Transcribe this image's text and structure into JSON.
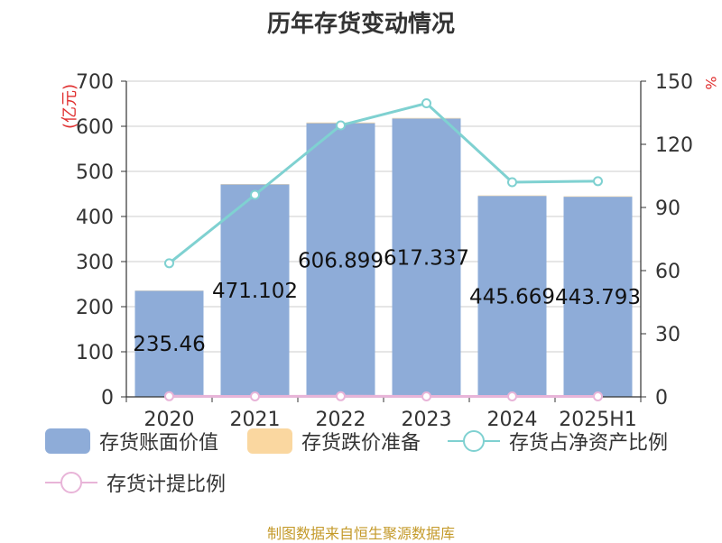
{
  "chart_data": {
    "type": "bar",
    "title": "历年存货变动情况",
    "categories": [
      "2020",
      "2021",
      "2022",
      "2023",
      "2024",
      "2025H1"
    ],
    "ylabel_left": "(亿元)",
    "ylabel_right": "%",
    "ylim_left": [
      0,
      700
    ],
    "yticks_left": [
      "0",
      "100",
      "200",
      "300",
      "400",
      "500",
      "600",
      "700"
    ],
    "ylim_right": [
      0,
      150
    ],
    "yticks_right": [
      "0",
      "30",
      "60",
      "90",
      "120",
      "150"
    ],
    "grid": true,
    "series": [
      {
        "name": "存货账面价值",
        "type": "bar",
        "axis": "left",
        "color": "#8eacd8",
        "values": [
          235.46,
          471.102,
          606.899,
          617.337,
          445.669,
          443.793
        ],
        "labels": [
          "235.46",
          "471.102",
          "606.899",
          "617.337",
          "445.669",
          "443.793"
        ]
      },
      {
        "name": "存货跌价准备",
        "type": "bar",
        "axis": "left",
        "color": "#fad7a0",
        "values": [
          0.6,
          0.8,
          1.5,
          1.2,
          1.0,
          1.0
        ]
      },
      {
        "name": "存货占净资产比例",
        "type": "line",
        "axis": "right",
        "color": "#7fd1d1",
        "values": [
          63.5,
          96,
          129,
          139.5,
          102,
          102.5
        ]
      },
      {
        "name": "存货计提比例",
        "type": "line",
        "axis": "right",
        "color": "#e8b4d8",
        "values": [
          0.3,
          0.2,
          0.3,
          0.2,
          0.2,
          0.2
        ]
      }
    ],
    "legend_position": "bottom"
  },
  "source_text": "制图数据来自恒生聚源数据库"
}
